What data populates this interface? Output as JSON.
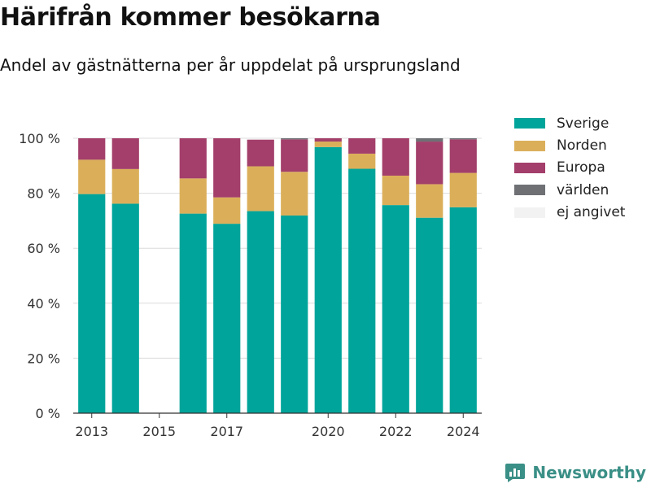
{
  "header": {
    "title": "Härifrån kommer besökarna",
    "subtitle": "Andel av gästnätterna per år uppdelat på ursprungsland"
  },
  "brand": {
    "name": "Newsworthy",
    "icon": "newsworthy-logo-icon",
    "color": "#3a8f86"
  },
  "chart_data": {
    "type": "bar",
    "stacked": true,
    "categories": [
      2013,
      2014,
      2015,
      2016,
      2017,
      2018,
      2019,
      2020,
      2021,
      2022,
      2023,
      2024
    ],
    "x_ticks": [
      2013,
      2015,
      2017,
      2020,
      2022,
      2024
    ],
    "x_tick_labels": [
      "2013",
      "2015",
      "2017",
      "2020",
      "2022",
      "2024"
    ],
    "ylim": [
      0,
      100
    ],
    "y_ticks": [
      0,
      20,
      40,
      60,
      80,
      100
    ],
    "y_tick_labels": [
      "0 %",
      "20 %",
      "40 %",
      "60 %",
      "80 %",
      "100 %"
    ],
    "grid": true,
    "legend_position": "right",
    "series": [
      {
        "name": "Sverige",
        "color": "#00a49a",
        "values": [
          79.7,
          76.2,
          null,
          72.6,
          68.9,
          73.5,
          71.9,
          96.8,
          88.9,
          75.7,
          71.1,
          74.9
        ]
      },
      {
        "name": "Norden",
        "color": "#dbaf5a",
        "values": [
          12.5,
          12.6,
          null,
          12.8,
          9.6,
          16.3,
          15.9,
          2.0,
          5.5,
          10.7,
          12.2,
          12.5
        ]
      },
      {
        "name": "Europa",
        "color": "#a33f6a",
        "values": [
          7.8,
          11.2,
          null,
          14.6,
          21.5,
          9.7,
          11.8,
          1.2,
          5.6,
          13.6,
          15.5,
          12.2
        ]
      },
      {
        "name": "världen",
        "color": "#6e7074",
        "values": [
          0.0,
          0.0,
          null,
          0.0,
          0.0,
          0.0,
          0.4,
          0.0,
          0.0,
          0.0,
          1.2,
          0.4
        ]
      },
      {
        "name": "ej angivet",
        "color": "#f2f2f2",
        "values": [
          0.0,
          0.0,
          null,
          0.0,
          0.0,
          0.0,
          0.0,
          0.0,
          0.0,
          0.0,
          0.0,
          0.0
        ]
      }
    ]
  }
}
